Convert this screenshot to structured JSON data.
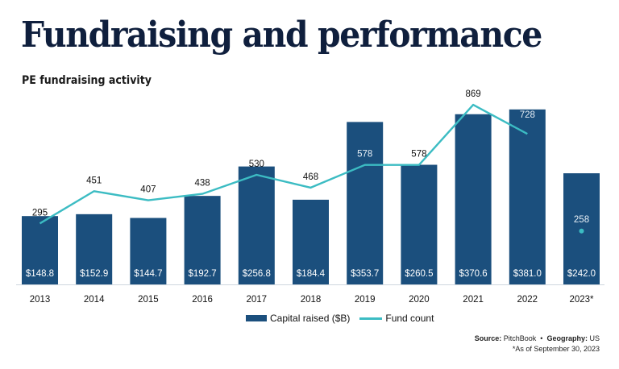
{
  "title": "Fundraising and performance",
  "subtitle": "PE fundraising activity",
  "legend": {
    "bar_label": "Capital raised ($B)",
    "line_label": "Fund count"
  },
  "source": {
    "source_label": "Source:",
    "source_value": "PitchBook",
    "separator": "•",
    "geo_label": "Geography:",
    "geo_value": "US",
    "footnote": "*As of September 30, 2023"
  },
  "colors": {
    "bar": "#1b4f7d",
    "line": "#3cbcc3"
  },
  "chart_data": {
    "type": "bar",
    "title": "PE fundraising activity",
    "xlabel": "",
    "ylabel": "",
    "categories": [
      "2013",
      "2014",
      "2015",
      "2016",
      "2017",
      "2018",
      "2019",
      "2020",
      "2021",
      "2022",
      "2023*"
    ],
    "series": [
      {
        "name": "Capital raised ($B)",
        "type": "bar",
        "values": [
          148.8,
          152.9,
          144.7,
          192.7,
          256.8,
          184.4,
          353.7,
          260.5,
          370.6,
          381.0,
          242.0
        ],
        "labels": [
          "$148.8",
          "$152.9",
          "$144.7",
          "$192.7",
          "$256.8",
          "$184.4",
          "$353.7",
          "$260.5",
          "$370.6",
          "$381.0",
          "$242.0"
        ]
      },
      {
        "name": "Fund count",
        "type": "line",
        "values": [
          295,
          451,
          407,
          438,
          530,
          468,
          578,
          578,
          869,
          728,
          258
        ],
        "line_break_before_last": true
      }
    ],
    "grid": false,
    "legend_position": "bottom-center"
  }
}
